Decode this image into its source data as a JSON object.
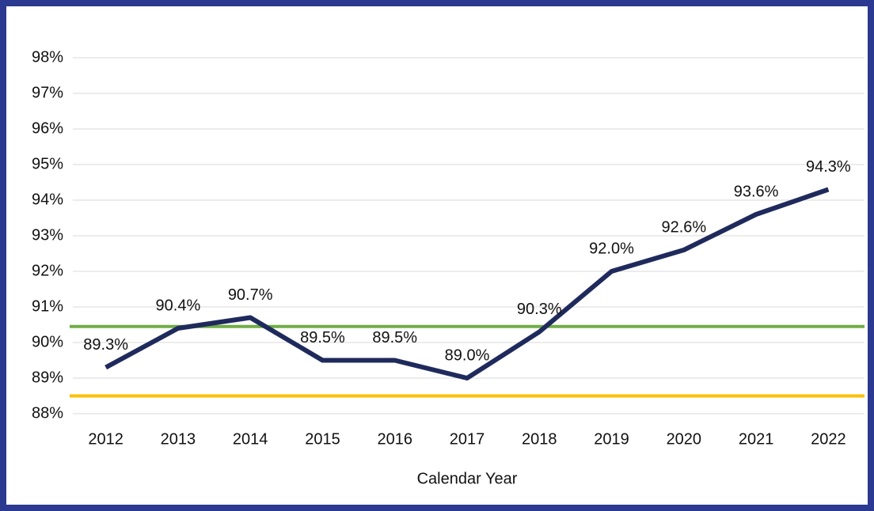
{
  "chart_data": {
    "type": "line",
    "x_label": "Calendar Year",
    "categories": [
      "2012",
      "2013",
      "2014",
      "2015",
      "2016",
      "2017",
      "2018",
      "2019",
      "2020",
      "2021",
      "2022"
    ],
    "series": [
      {
        "color": "#1f2a5c",
        "values": [
          89.3,
          90.4,
          90.7,
          89.5,
          89.5,
          89.0,
          90.3,
          92.0,
          92.6,
          93.6,
          94.3
        ],
        "value_labels": [
          "89.3%",
          "90.4%",
          "90.7%",
          "89.5%",
          "89.5%",
          "89.0%",
          "90.3%",
          "92.0%",
          "92.6%",
          "93.6%",
          "94.3%"
        ]
      }
    ],
    "reference_lines": [
      {
        "value": 90.45,
        "color": "#70ad47"
      },
      {
        "value": 88.5,
        "color": "#ffc000"
      }
    ],
    "ylim": [
      88,
      98
    ],
    "yticks": [
      {
        "value": 88,
        "label": "88%"
      },
      {
        "value": 89,
        "label": "89%"
      },
      {
        "value": 90,
        "label": "90%"
      },
      {
        "value": 91,
        "label": "91%"
      },
      {
        "value": 92,
        "label": "92%"
      },
      {
        "value": 93,
        "label": "93%"
      },
      {
        "value": 94,
        "label": "94%"
      },
      {
        "value": 95,
        "label": "95%"
      },
      {
        "value": 96,
        "label": "96%"
      },
      {
        "value": 97,
        "label": "97%"
      },
      {
        "value": 98,
        "label": "98%"
      }
    ],
    "grid": true
  }
}
